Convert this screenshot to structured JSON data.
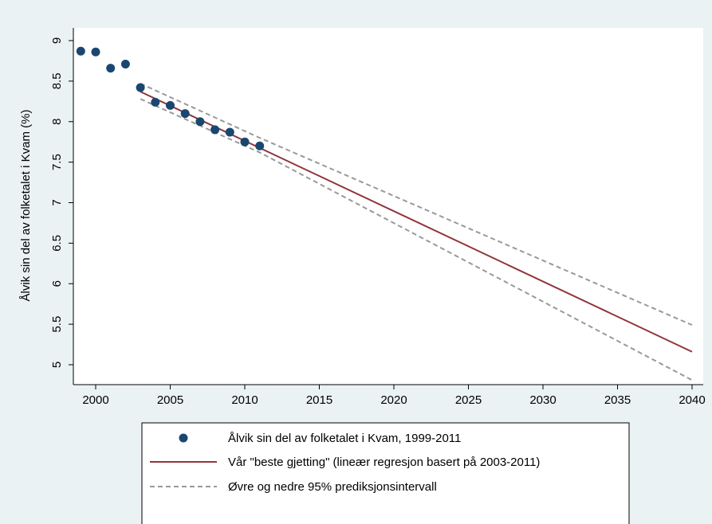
{
  "chart_data": {
    "type": "line",
    "title": "",
    "xlabel": "",
    "ylabel": "Ålvik sin del av folketalet i Kvam (%)",
    "xlim": [
      1999,
      2040
    ],
    "ylim": [
      4.8,
      9.0
    ],
    "x_ticks": [
      2000,
      2005,
      2010,
      2015,
      2020,
      2025,
      2030,
      2035,
      2040
    ],
    "y_ticks": [
      5,
      5.5,
      6,
      6.5,
      7,
      7.5,
      8,
      8.5,
      9
    ],
    "grid": false,
    "legend_position": "bottom",
    "colors": {
      "background": "#eaf2f3",
      "plot_background": "#ffffff",
      "points": "#1a476f",
      "regression": "#90353b",
      "interval": "#999999"
    },
    "series": [
      {
        "name": "Ålvik sin del av folketalet i Kvam, 1999-2011",
        "kind": "scatter",
        "x": [
          1999,
          2000,
          2001,
          2002,
          2003,
          2004,
          2005,
          2006,
          2007,
          2008,
          2009,
          2010,
          2011
        ],
        "y": [
          8.87,
          8.86,
          8.66,
          8.71,
          8.42,
          8.24,
          8.2,
          8.1,
          8.0,
          7.9,
          7.87,
          7.75,
          7.7
        ]
      },
      {
        "name": "Vår \"beste gjetting\" (lineær regresjon basert på 2003-2011)",
        "kind": "line",
        "x": [
          2003,
          2040
        ],
        "y": [
          8.37,
          5.16
        ]
      },
      {
        "name": "Øvre og nedre 95% prediksjonsintervall",
        "kind": "dashed-line",
        "bands": [
          {
            "x": [
              2003,
              2011,
              2040
            ],
            "y": [
              8.47,
              7.8,
              5.49
            ]
          },
          {
            "x": [
              2003,
              2011,
              2040
            ],
            "y": [
              8.28,
              7.62,
              4.81
            ]
          }
        ]
      }
    ]
  }
}
